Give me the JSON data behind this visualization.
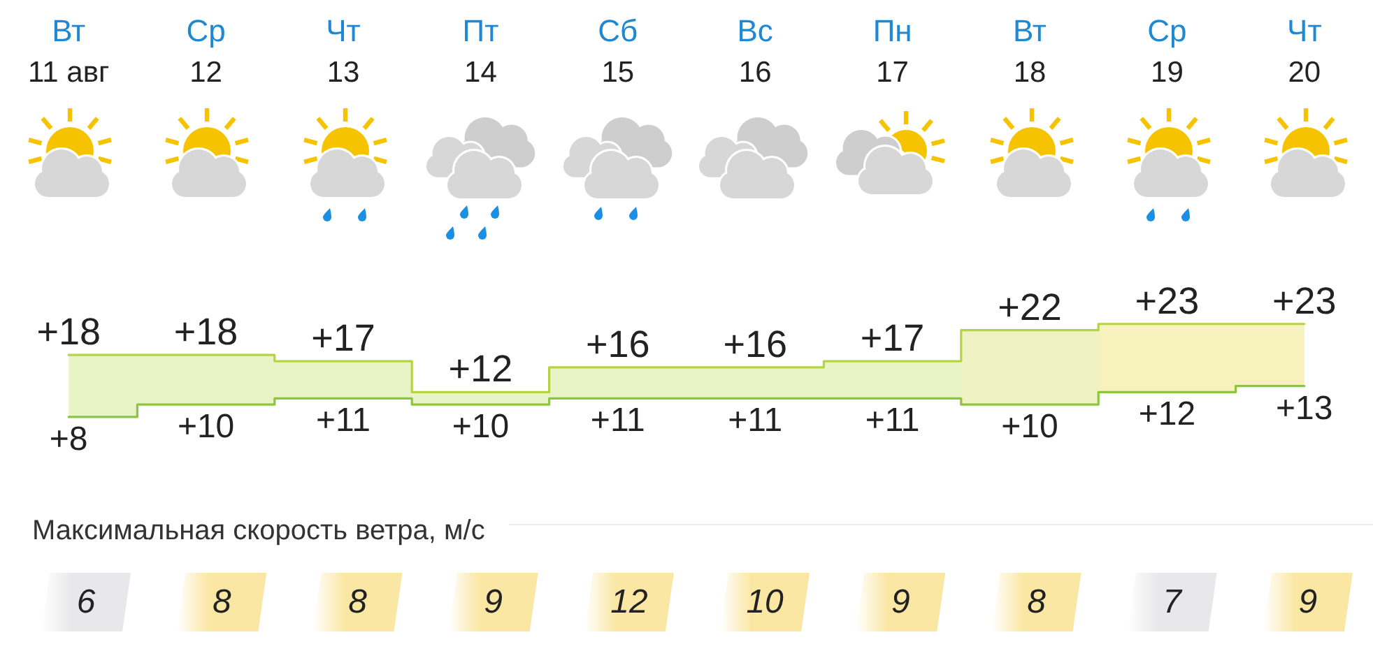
{
  "chart_data": [
    {
      "type": "step",
      "categories": [
        "Вт\n11 авг",
        "Ср\n12",
        "Чт\n13",
        "Пт\n14",
        "Сб\n15",
        "Вс\n16",
        "Пн\n17",
        "Вт\n18",
        "Ср\n19",
        "Чт\n20"
      ],
      "series": [
        {
          "values": [
            18,
            18,
            17,
            12,
            16,
            16,
            17,
            22,
            23,
            23
          ],
          "value_labels": [
            "+18",
            "+18",
            "+17",
            "+12",
            "+16",
            "+16",
            "+17",
            "+22",
            "+23",
            "+23"
          ],
          "color": "#b5d445",
          "lower": [
            8,
            10,
            11,
            10,
            11,
            11,
            11,
            10,
            12,
            13
          ],
          "upper": [
            18,
            18,
            17,
            12,
            16,
            16,
            17,
            22,
            23,
            23
          ],
          "colors": [
            "#e9f4c6",
            "#e9f4c6",
            "#e9f4c6",
            "#e9f4c6",
            "#e9f4c6",
            "#e9f4c6",
            "#e9f4c6",
            "#eff3c3",
            "#f6f1bd",
            "#f6f1bd"
          ]
        },
        {
          "values": [
            8,
            10,
            11,
            10,
            11,
            11,
            11,
            10,
            12,
            13
          ],
          "value_labels": [
            "+8",
            "+10",
            "+11",
            "+10",
            "+11",
            "+11",
            "+11",
            "+10",
            "+12",
            "+13"
          ],
          "color": "#8cc63f"
        }
      ],
      "tick_labels": "x",
      "marker": "none"
    },
    {
      "type": "heatmap",
      "title": "Максимальная скорость ветра, м/с",
      "categories": [
        null,
        null,
        null,
        null,
        null,
        null,
        null,
        null,
        null,
        null
      ],
      "y_categories": [
        null
      ],
      "cells": [
        [
          6,
          8,
          8,
          9,
          12,
          10,
          9,
          8,
          7,
          9
        ]
      ],
      "colors": [
        "#e8e8ea",
        "#fbe7a4",
        "#fbe7a4",
        "#fbe7a4",
        "#fbe7a4",
        "#fbe7a4",
        "#fbe7a4",
        "#fbe7a4",
        "#e8e8ea",
        "#fbe7a4"
      ],
      "data_labels": true
    }
  ]
}
